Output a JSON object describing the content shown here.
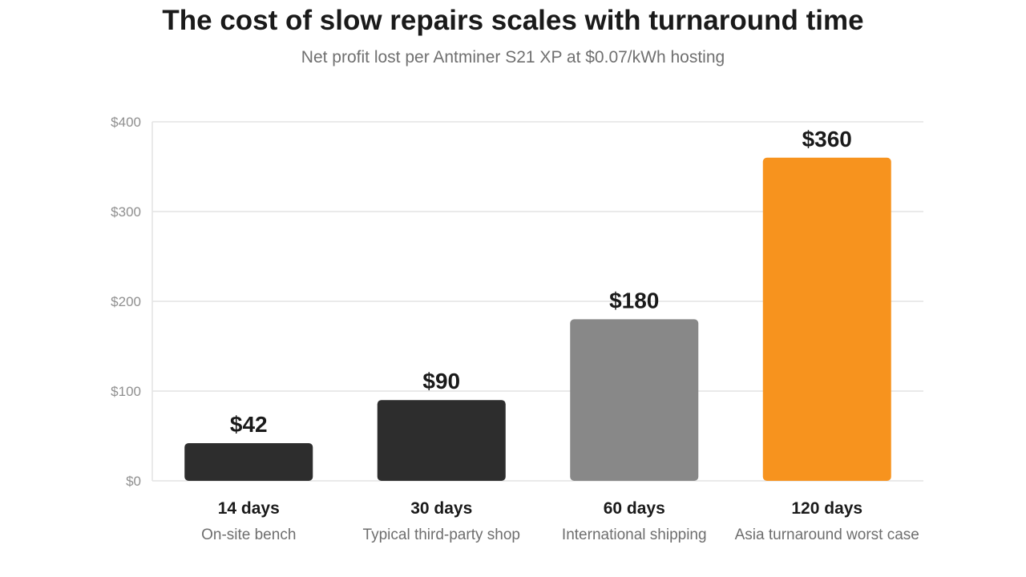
{
  "chart_data": {
    "type": "bar",
    "title": "The cost of slow repairs scales with turnaround time",
    "subtitle": "Net profit lost per Antminer S21 XP at $0.07/kWh hosting",
    "categories": [
      "14 days",
      "30 days",
      "60 days",
      "120 days"
    ],
    "category_sublabels": [
      "On-site bench",
      "Typical third-party shop",
      "International shipping",
      "Asia turnaround worst case"
    ],
    "values": [
      42,
      90,
      180,
      360
    ],
    "value_labels": [
      "$42",
      "$90",
      "$180",
      "$360"
    ],
    "bar_colors": [
      "#2d2d2d",
      "#2d2d2d",
      "#888888",
      "#f7931e"
    ],
    "ylim": [
      0,
      400
    ],
    "yticks": [
      0,
      100,
      200,
      300,
      400
    ],
    "ytick_labels": [
      "$0",
      "$100",
      "$200",
      "$300",
      "$400"
    ],
    "xlabel": "",
    "ylabel": "",
    "grid": true,
    "legend": "none"
  }
}
